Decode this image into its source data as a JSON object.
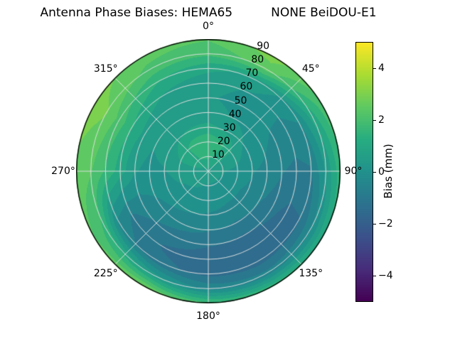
{
  "title_display": "Antenna Phase Biases: HEMA65          NONE BeiDOU-E1",
  "chart_data": {
    "type": "heatmap",
    "projection": "polar",
    "title_left": "Antenna Phase Biases: HEMA65",
    "title_right": "NONE BeiDOU-E1",
    "theta_tick_labels": [
      "0°",
      "45°",
      "90°",
      "135°",
      "180°",
      "225°",
      "270°",
      "315°"
    ],
    "theta_tick_angles_deg": [
      0,
      45,
      90,
      135,
      180,
      225,
      270,
      315
    ],
    "theta_direction": "clockwise",
    "theta_zero_location": "top",
    "r_ticks": [
      10,
      20,
      30,
      40,
      50,
      60,
      70,
      80,
      90
    ],
    "r_tick_labels": [
      "10",
      "20",
      "30",
      "40",
      "50",
      "60",
      "70",
      "80",
      "90"
    ],
    "r_max": 90,
    "r_label_angle_deg": 22.5,
    "grid": true,
    "levels_step_mm": 0.5,
    "colorbar": {
      "label": "Bias (mm)",
      "vmin": -5,
      "vmax": 5,
      "ticks": [
        4,
        2,
        0,
        -2,
        -4
      ],
      "tick_labels": [
        "4",
        "2",
        "0",
        "−2",
        "−4"
      ],
      "colormap": "viridis",
      "viridis_anchors": [
        "#440154",
        "#472d7b",
        "#3b528b",
        "#2c728e",
        "#21918c",
        "#27ad81",
        "#5ec962",
        "#aadc32",
        "#fde725"
      ]
    },
    "azimuth_deg": [
      0,
      30,
      60,
      90,
      120,
      150,
      180,
      210,
      240,
      270,
      300,
      330
    ],
    "zenith_deg": [
      0,
      10,
      20,
      30,
      40,
      50,
      60,
      70,
      80,
      90
    ],
    "bias_mm": [
      [
        0.6,
        0.6,
        0.6,
        0.6,
        0.6,
        0.6,
        0.6,
        0.6,
        0.6,
        0.6,
        0.6,
        0.6
      ],
      [
        1.4,
        1.1,
        0.6,
        0.3,
        0.2,
        0.2,
        0.2,
        0.3,
        0.4,
        0.6,
        0.9,
        1.3
      ],
      [
        1.7,
        1.3,
        0.5,
        0.1,
        -0.1,
        -0.1,
        0.0,
        0.1,
        0.2,
        0.5,
        0.9,
        1.5
      ],
      [
        0.9,
        0.6,
        0.1,
        -0.2,
        -0.4,
        -0.4,
        -0.3,
        -0.2,
        -0.1,
        0.2,
        0.5,
        0.8
      ],
      [
        0.4,
        0.2,
        -0.1,
        -0.4,
        -0.7,
        -0.8,
        -0.7,
        -0.5,
        -0.3,
        0.1,
        0.3,
        0.4
      ],
      [
        0.3,
        0.1,
        -0.3,
        -0.7,
        -1.1,
        -1.3,
        -1.2,
        -1.0,
        -0.6,
        0.3,
        0.6,
        0.4
      ],
      [
        0.4,
        0.2,
        -0.4,
        -0.9,
        -1.4,
        -1.6,
        -1.5,
        -1.3,
        -0.8,
        1.0,
        1.3,
        0.7
      ],
      [
        0.9,
        0.6,
        -0.2,
        -0.8,
        -1.3,
        -1.5,
        -1.4,
        -1.1,
        -0.4,
        1.7,
        2.1,
        1.3
      ],
      [
        1.9,
        2.5,
        1.1,
        0.3,
        -0.3,
        -0.6,
        -0.4,
        0.6,
        1.6,
        2.3,
        2.8,
        2.1
      ],
      [
        2.3,
        3.0,
        2.1,
        1.6,
        1.3,
        1.6,
        1.9,
        2.9,
        2.3,
        2.6,
        3.0,
        2.5
      ]
    ]
  }
}
